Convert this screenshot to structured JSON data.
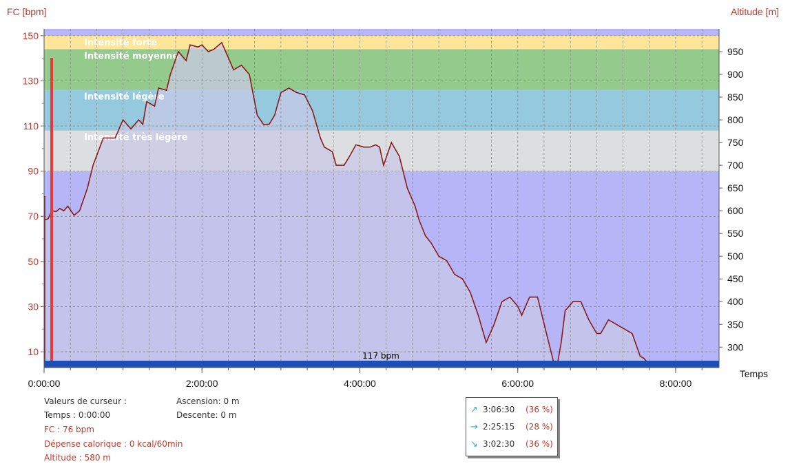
{
  "chart_data": {
    "type": "area",
    "y_left_label": "FC [bpm]",
    "y_right_label": "Altitude  [m]",
    "x_label": "Temps",
    "x_ticks": [
      "0:00:00",
      "2:00:00",
      "4:00:00",
      "6:00:00",
      "8:00:00"
    ],
    "x_range_hours": [
      0,
      8.55
    ],
    "y_left_ticks": [
      150,
      130,
      110,
      90,
      70,
      50,
      30,
      10
    ],
    "y_left_range": [
      3,
      153
    ],
    "y_right_ticks": [
      950,
      900,
      850,
      800,
      750,
      700,
      650,
      600,
      550,
      500,
      450,
      400,
      350,
      300
    ],
    "y_right_range": [
      255,
      1000
    ],
    "zones": [
      {
        "label": "Intensité forte",
        "from": 144,
        "to": 150,
        "color": "#fde69a"
      },
      {
        "label": "Intensité moyenne",
        "from": 126,
        "to": 144,
        "color": "#94cb8d"
      },
      {
        "label": "Intensité légère",
        "from": 108,
        "to": 126,
        "color": "#94c9de"
      },
      {
        "label": "Intensité très légère",
        "from": 90,
        "to": 108,
        "color": "#dcdedf"
      }
    ],
    "zone_label_color": "#ffffff",
    "below_zone_color": "#b5b5f8",
    "altitude_fill": "#c9c9e6",
    "altitude_line_color": "#8b1a1a",
    "cursor_color": "#e53b3b",
    "bottom_bar_color": "#1e4fb5",
    "bottom_bar_label": "117 bpm",
    "altitude_series": {
      "name": "Altitude",
      "x": [
        0,
        0.05,
        0.1,
        0.15,
        0.2,
        0.25,
        0.3,
        0.38,
        0.45,
        0.55,
        0.62,
        0.75,
        0.9,
        1.0,
        1.1,
        1.15,
        1.2,
        1.25,
        1.3,
        1.4,
        1.45,
        1.55,
        1.6,
        1.7,
        1.8,
        1.85,
        1.95,
        2.0,
        2.08,
        2.15,
        2.25,
        2.35,
        2.4,
        2.5,
        2.6,
        2.7,
        2.78,
        2.85,
        2.92,
        3.0,
        3.1,
        3.2,
        3.3,
        3.4,
        3.5,
        3.55,
        3.65,
        3.7,
        3.8,
        3.87,
        3.95,
        4.05,
        4.13,
        4.2,
        4.25,
        4.3,
        4.4,
        4.5,
        4.6,
        4.7,
        4.75,
        4.83,
        4.9,
        5.0,
        5.1,
        5.2,
        5.3,
        5.4,
        5.5,
        5.6,
        5.7,
        5.8,
        5.9,
        6.0,
        6.05,
        6.15,
        6.25,
        6.35,
        6.45,
        6.5,
        6.55,
        6.6,
        6.7,
        6.8,
        6.9,
        7.0,
        7.05,
        7.15,
        7.25,
        7.35,
        7.45,
        7.55,
        7.6,
        7.65,
        7.7,
        7.8,
        7.9,
        7.95,
        8.0,
        8.05,
        8.15,
        8.25
      ],
      "y": [
        580,
        582,
        600,
        598,
        605,
        600,
        610,
        590,
        600,
        650,
        700,
        760,
        760,
        800,
        780,
        790,
        800,
        790,
        840,
        830,
        870,
        865,
        900,
        950,
        930,
        965,
        960,
        965,
        950,
        955,
        970,
        930,
        910,
        920,
        900,
        810,
        790,
        790,
        810,
        860,
        870,
        860,
        855,
        820,
        760,
        740,
        730,
        700,
        700,
        720,
        745,
        740,
        740,
        745,
        740,
        700,
        750,
        720,
        650,
        610,
        580,
        545,
        530,
        500,
        490,
        460,
        450,
        420,
        370,
        310,
        350,
        400,
        410,
        390,
        370,
        410,
        410,
        340,
        270,
        260,
        310,
        380,
        400,
        400,
        360,
        330,
        330,
        360,
        350,
        340,
        330,
        280,
        275,
        265,
        262,
        265,
        260,
        258,
        258,
        258,
        258,
        258
      ]
    }
  },
  "cursor_info": {
    "header": "Valeurs de curseur :",
    "temps": "Temps : 0:00:00",
    "fc": "FC : 76 bpm",
    "depense": "Dépense calorique : 0 kcal/60min",
    "altitude": "Altitude : 580 m",
    "ascension": "Ascension: 0 m",
    "descente": "Descente: 0 m"
  },
  "slope_stats": [
    {
      "icon": "arrow-up-right-icon",
      "glyph": "↗",
      "time": "3:06:30",
      "pct": "(36 %)"
    },
    {
      "icon": "arrow-right-icon",
      "glyph": "→",
      "time": "2:25:15",
      "pct": "(28 %)"
    },
    {
      "icon": "arrow-down-right-icon",
      "glyph": "↘",
      "time": "3:02:30",
      "pct": "(36 %)"
    }
  ]
}
